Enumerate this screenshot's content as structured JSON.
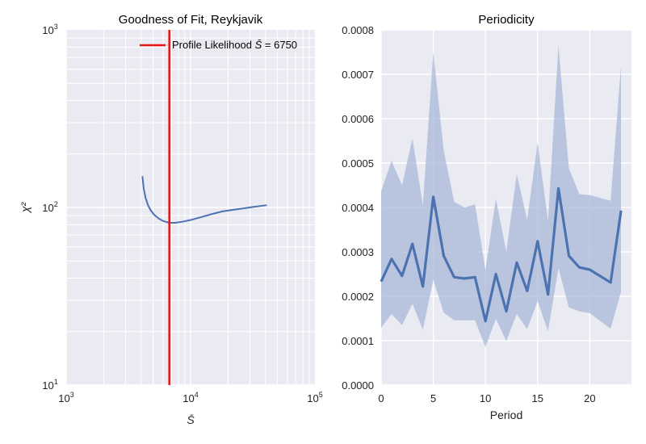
{
  "chart_data": [
    {
      "type": "line",
      "title": "Goodness of Fit, Reykjavik",
      "xlabel": "S̄",
      "ylabel": "χ²",
      "xscale": "log",
      "yscale": "log",
      "xlim": [
        1000,
        100000
      ],
      "ylim": [
        10,
        1000
      ],
      "x_ticks": [
        {
          "value": 1000,
          "label": "10",
          "exp": "3"
        },
        {
          "value": 10000,
          "label": "10",
          "exp": "4"
        },
        {
          "value": 100000,
          "label": "10",
          "exp": "5"
        }
      ],
      "y_ticks": [
        {
          "value": 10,
          "label": "10",
          "exp": "1"
        },
        {
          "value": 100,
          "label": "10",
          "exp": "2"
        },
        {
          "value": 1000,
          "label": "10",
          "exp": "3"
        }
      ],
      "grid": true,
      "legend": {
        "placement": "upper-right",
        "label_prefix": "Profile Likelihood ",
        "label_var": "S̄",
        "label_suffix": " = 6750"
      },
      "vline": {
        "x": 6750,
        "color": "#e8140f"
      },
      "series": [
        {
          "color": "#4c72b0",
          "x": [
            4100,
            4200,
            4350,
            4550,
            4800,
            5100,
            5500,
            6000,
            6750,
            7500,
            8500,
            10000,
            12000,
            15000,
            18000,
            22000,
            27000,
            33000,
            41000
          ],
          "y": [
            150,
            128,
            113,
            103,
            96,
            91,
            87,
            84,
            82,
            82,
            83,
            85,
            88,
            92,
            95,
            97,
            99,
            101,
            103
          ]
        }
      ]
    },
    {
      "type": "line",
      "title": "Periodicity",
      "xlabel": "Period",
      "ylabel": "",
      "xlim": [
        0,
        24
      ],
      "ylim": [
        0,
        0.0008
      ],
      "x_ticks": [
        0,
        5,
        10,
        15,
        20
      ],
      "y_ticks": [
        "0.0000",
        "0.0001",
        "0.0002",
        "0.0003",
        "0.0004",
        "0.0005",
        "0.0006",
        "0.0007",
        "0.0008"
      ],
      "grid": true,
      "series": [
        {
          "color": "#4c72b0",
          "band_color": "#a8b8d8",
          "x": [
            0,
            1,
            2,
            3,
            4,
            5,
            6,
            7,
            8,
            9,
            10,
            11,
            12,
            13,
            14,
            15,
            16,
            17,
            18,
            19,
            20,
            22,
            23
          ],
          "y": [
            0.000233,
            0.000284,
            0.000246,
            0.000318,
            0.000222,
            0.000424,
            0.000291,
            0.000243,
            0.00024,
            0.000243,
            0.000144,
            0.00025,
            0.000166,
            0.000276,
            0.000212,
            0.000324,
            0.000204,
            0.000443,
            0.000291,
            0.000265,
            0.00026,
            0.000231,
            0.000393
          ],
          "upper": [
            0.000437,
            0.000505,
            0.00045,
            0.000555,
            0.000405,
            0.00075,
            0.000528,
            0.000413,
            0.0004,
            0.000407,
            0.00026,
            0.00042,
            0.0003,
            0.000475,
            0.000372,
            0.000546,
            0.00037,
            0.000765,
            0.000488,
            0.00043,
            0.000428,
            0.000415,
            0.00072
          ],
          "lower": [
            0.000129,
            0.00016,
            0.000135,
            0.000183,
            0.000125,
            0.000237,
            0.000163,
            0.000146,
            0.000146,
            0.000146,
            8.6e-05,
            0.000149,
            9.9e-05,
            0.00016,
            0.000126,
            0.000189,
            0.000121,
            0.000263,
            0.000175,
            0.000166,
            0.000162,
            0.000127,
            0.00021
          ]
        }
      ]
    }
  ]
}
